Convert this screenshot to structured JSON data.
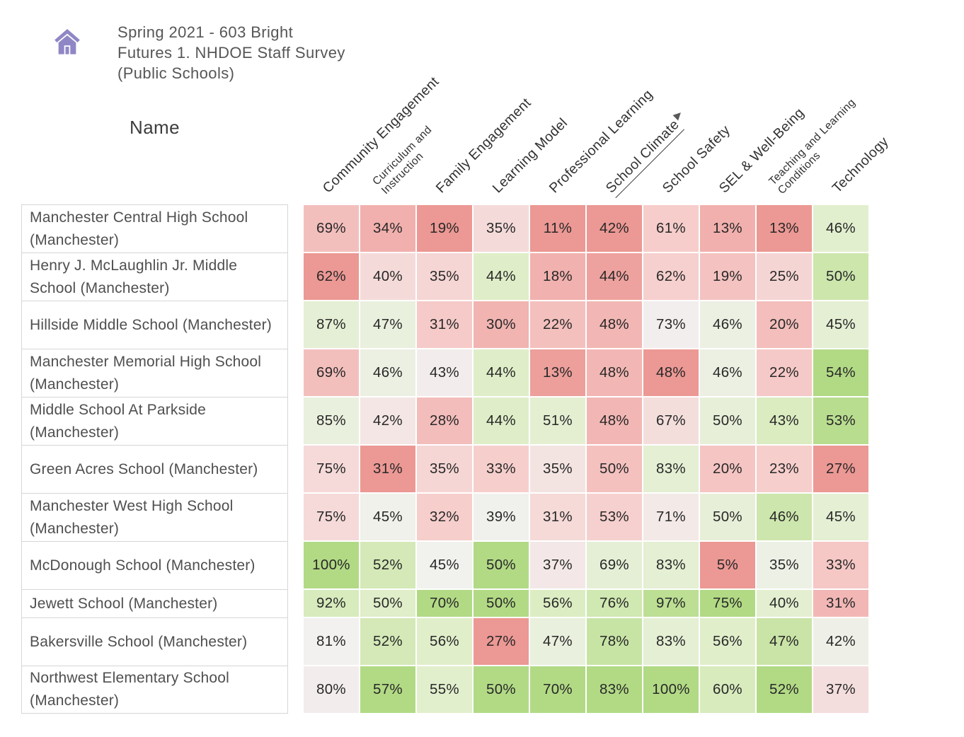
{
  "header": {
    "icon": "home-icon",
    "icon_color": "#8F87C5",
    "title": "Spring 2021 - 603 Bright Futures 1. NHDOE Staff Survey (Public Schools)",
    "title_lines": [
      "Spring 2021 - 603 Bright",
      "Futures 1. NHDOE Staff Survey",
      "(Public Schools)"
    ]
  },
  "table": {
    "name_header": "Name",
    "value_suffix": "%",
    "sort_indicator": "▶",
    "sorted_column": "School Climate",
    "columns": [
      {
        "label": "Community Engagement"
      },
      {
        "label": "Curriculum and Instruction",
        "small": true,
        "lines": [
          "Curriculum and",
          "Instruction"
        ]
      },
      {
        "label": "Family Engagement"
      },
      {
        "label": "Learning Model"
      },
      {
        "label": "Professional Learning"
      },
      {
        "label": "School Climate",
        "sorted": true
      },
      {
        "label": "School Safety"
      },
      {
        "label": "SEL & Well-Being"
      },
      {
        "label": "Teaching and Learning Conditions",
        "small": true,
        "lines": [
          "Teaching and Learning",
          "Conditions"
        ]
      },
      {
        "label": "Technology"
      }
    ],
    "rows": [
      {
        "name": "Manchester Central High School (Manchester)",
        "values": [
          69,
          34,
          19,
          35,
          11,
          42,
          61,
          13,
          13,
          46
        ]
      },
      {
        "name": "Henry J. McLaughlin Jr. Middle School (Manchester)",
        "values": [
          62,
          40,
          35,
          44,
          18,
          44,
          62,
          19,
          25,
          50
        ]
      },
      {
        "name": "Hillside Middle School (Manchester)",
        "values": [
          87,
          47,
          31,
          30,
          22,
          48,
          73,
          46,
          20,
          45
        ]
      },
      {
        "name": "Manchester Memorial High School (Manchester)",
        "values": [
          69,
          46,
          43,
          44,
          13,
          48,
          48,
          46,
          22,
          54
        ]
      },
      {
        "name": "Middle School At Parkside (Manchester)",
        "values": [
          85,
          42,
          28,
          44,
          51,
          48,
          67,
          50,
          43,
          53
        ]
      },
      {
        "name": "Green Acres School (Manchester)",
        "values": [
          75,
          31,
          35,
          33,
          35,
          50,
          83,
          20,
          23,
          27
        ]
      },
      {
        "name": "Manchester West High School (Manchester)",
        "values": [
          75,
          45,
          32,
          39,
          31,
          53,
          71,
          50,
          46,
          45
        ]
      },
      {
        "name": "McDonough School (Manchester)",
        "values": [
          100,
          52,
          45,
          50,
          37,
          69,
          83,
          5,
          35,
          33
        ]
      },
      {
        "name": "Jewett School (Manchester)",
        "values": [
          92,
          50,
          70,
          50,
          56,
          76,
          97,
          75,
          40,
          31
        ]
      },
      {
        "name": "Bakersville School (Manchester)",
        "values": [
          81,
          52,
          56,
          27,
          47,
          78,
          83,
          56,
          47,
          42
        ]
      },
      {
        "name": "Northwest Elementary School (Manchester)",
        "values": [
          80,
          57,
          55,
          50,
          70,
          83,
          100,
          60,
          52,
          37
        ]
      }
    ]
  },
  "heatmap": {
    "normalization": "per-column min to max",
    "color_stops": [
      [
        0.0,
        "#EC9894"
      ],
      [
        0.25,
        "#F6CDCB"
      ],
      [
        0.5,
        "#F2F1F0"
      ],
      [
        0.75,
        "#DEEEC6"
      ],
      [
        1.0,
        "#B2DA85"
      ]
    ]
  },
  "chart_data": {
    "type": "heatmap",
    "title": "Spring 2021 - 603 Bright Futures 1. NHDOE Staff Survey (Public Schools)",
    "x_categories": [
      "Community Engagement",
      "Curriculum and Instruction",
      "Family Engagement",
      "Learning Model",
      "Professional Learning",
      "School Climate",
      "School Safety",
      "SEL & Well-Being",
      "Teaching and Learning Conditions",
      "Technology"
    ],
    "y_categories": [
      "Manchester Central High School (Manchester)",
      "Henry J. McLaughlin Jr. Middle School (Manchester)",
      "Hillside Middle School (Manchester)",
      "Manchester Memorial High School (Manchester)",
      "Middle School At Parkside (Manchester)",
      "Green Acres School (Manchester)",
      "Manchester West High School (Manchester)",
      "McDonough School (Manchester)",
      "Jewett School (Manchester)",
      "Bakersville School (Manchester)",
      "Northwest Elementary School (Manchester)"
    ],
    "values_percent": [
      [
        69,
        34,
        19,
        35,
        11,
        42,
        61,
        13,
        13,
        46
      ],
      [
        62,
        40,
        35,
        44,
        18,
        44,
        62,
        19,
        25,
        50
      ],
      [
        87,
        47,
        31,
        30,
        22,
        48,
        73,
        46,
        20,
        45
      ],
      [
        69,
        46,
        43,
        44,
        13,
        48,
        48,
        46,
        22,
        54
      ],
      [
        85,
        42,
        28,
        44,
        51,
        48,
        67,
        50,
        43,
        53
      ],
      [
        75,
        31,
        35,
        33,
        35,
        50,
        83,
        20,
        23,
        27
      ],
      [
        75,
        45,
        32,
        39,
        31,
        53,
        71,
        50,
        46,
        45
      ],
      [
        100,
        52,
        45,
        50,
        37,
        69,
        83,
        5,
        35,
        33
      ],
      [
        92,
        50,
        70,
        50,
        56,
        76,
        97,
        75,
        40,
        31
      ],
      [
        81,
        52,
        56,
        27,
        47,
        78,
        83,
        56,
        47,
        42
      ],
      [
        80,
        57,
        55,
        50,
        70,
        83,
        100,
        60,
        52,
        37
      ]
    ],
    "cell_label_format": "{value}%",
    "sorted_by": {
      "column": "School Climate",
      "direction": "ascending"
    },
    "color_scale": {
      "low": "#EC9894",
      "mid": "#F2F1F0",
      "high": "#B2DA85",
      "normalization": "per-column"
    },
    "legend": "none",
    "grid": "white gaps between cells"
  }
}
